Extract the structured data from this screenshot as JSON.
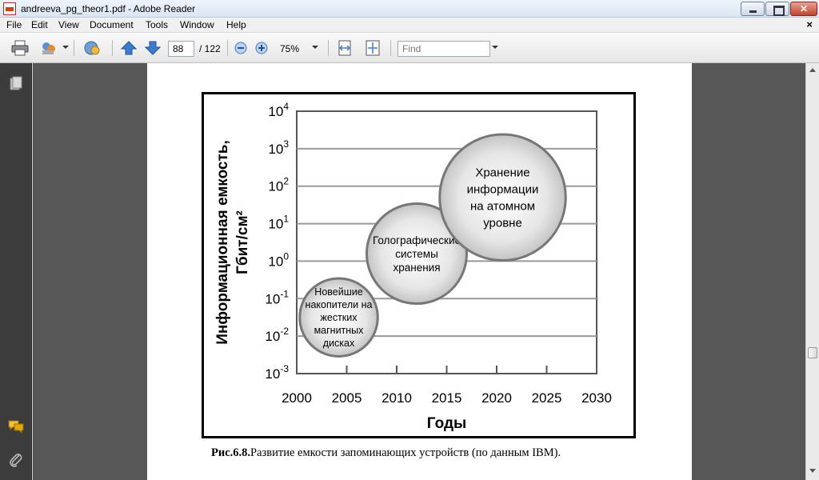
{
  "window": {
    "title": "andreeva_pg_theor1.pdf - Adobe Reader"
  },
  "menu": [
    "File",
    "Edit",
    "View",
    "Document",
    "Tools",
    "Window",
    "Help"
  ],
  "menu_close": "×",
  "toolbar": {
    "page_current": "88",
    "page_total": "/ 122",
    "zoom": "75%",
    "find_placeholder": "Find"
  },
  "figure": {
    "caption_label": "Рис.6.8.",
    "caption_text": "Развитие емкости запоминающих устройств (по данным IBM)."
  },
  "chart_data": {
    "type": "bubble",
    "title": "",
    "ylabel": "Информационная емкость, Гбит/см²",
    "ylabel_line1": "Информационная емкость,",
    "ylabel_line2": "Гбит/см²",
    "xlabel": "Годы",
    "xlim": [
      2000,
      2030
    ],
    "ylim_exp": [
      -3,
      4
    ],
    "y_scale": "log10",
    "x_ticks": [
      2000,
      2005,
      2010,
      2015,
      2020,
      2025,
      2030
    ],
    "y_tick_exponents": [
      4,
      3,
      2,
      1,
      0,
      -1,
      -2,
      -3
    ],
    "grid": "horizontal",
    "bubbles": [
      {
        "label_lines": [
          "Новейшие",
          "накопители на",
          "жестких",
          "магнитных",
          "дисках"
        ],
        "x": 2004.2,
        "y_exp": -1.5,
        "r_years": 3.9
      },
      {
        "label_lines": [
          "Голографические",
          "системы",
          "хранения"
        ],
        "x": 2012,
        "y_exp": 0.2,
        "r_years": 5.0
      },
      {
        "label_lines": [
          "Хранение",
          "информации",
          "на атомном",
          "уровне"
        ],
        "x": 2020.6,
        "y_exp": 1.7,
        "r_years": 6.3
      }
    ]
  }
}
